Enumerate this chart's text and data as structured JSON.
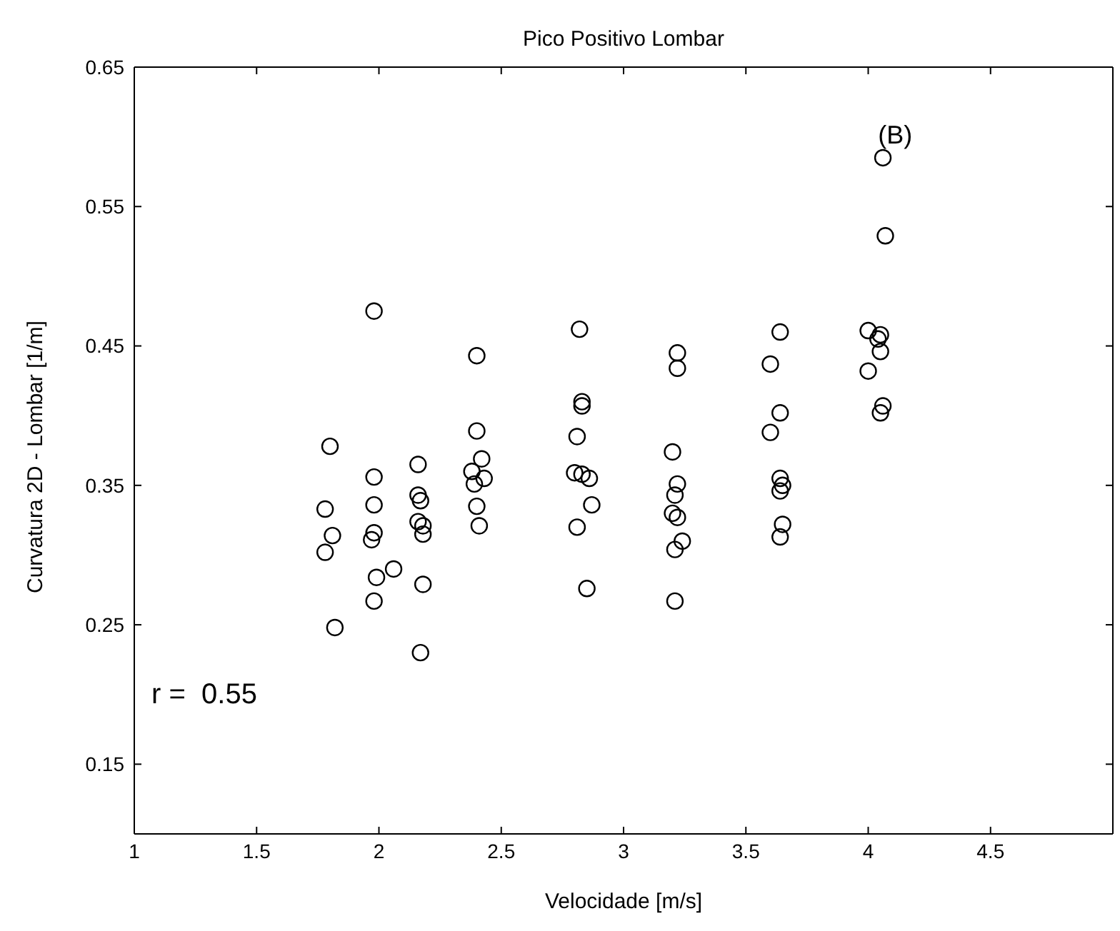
{
  "chart_data": {
    "type": "scatter",
    "title": "Pico Positivo Lombar",
    "xlabel": "Velocidade [m/s]",
    "ylabel": "Curvatura 2D - Lombar [1/m]",
    "annotations": [
      "(B)",
      "r =  0.55"
    ],
    "xlim": [
      1,
      5
    ],
    "xticks": [
      1,
      1.5,
      2,
      2.5,
      3,
      3.5,
      4,
      4.5
    ],
    "ylim": [
      0.1,
      0.65
    ],
    "yticks": [
      0.15,
      0.25,
      0.35,
      0.45,
      0.55,
      0.65
    ],
    "legend": false,
    "marker": "circle",
    "series": [
      {
        "color": "#000000",
        "x": [
          1.98,
          1.8,
          1.78,
          1.81,
          1.78,
          1.82,
          1.98,
          1.98,
          1.98,
          1.97,
          1.99,
          2.06,
          1.98,
          2.16,
          2.16,
          2.17,
          2.16,
          2.18,
          2.18,
          2.18,
          2.17,
          2.4,
          2.4,
          2.42,
          2.38,
          2.43,
          2.39,
          2.4,
          2.41,
          2.82,
          2.83,
          2.83,
          2.81,
          2.8,
          2.83,
          2.86,
          2.87,
          2.81,
          2.85,
          3.22,
          3.22,
          3.2,
          3.22,
          3.21,
          3.2,
          3.22,
          3.24,
          3.21,
          3.21,
          3.64,
          3.6,
          3.64,
          3.6,
          3.64,
          3.65,
          3.64,
          3.65,
          3.64,
          4.0,
          4.05,
          4.04,
          4.05,
          4.0,
          4.06,
          4.05,
          4.07,
          4.06
        ],
        "values": [
          0.475,
          0.378,
          0.333,
          0.314,
          0.302,
          0.248,
          0.356,
          0.336,
          0.316,
          0.311,
          0.284,
          0.29,
          0.267,
          0.365,
          0.343,
          0.339,
          0.324,
          0.321,
          0.315,
          0.279,
          0.23,
          0.443,
          0.389,
          0.369,
          0.36,
          0.355,
          0.351,
          0.335,
          0.321,
          0.462,
          0.41,
          0.407,
          0.385,
          0.359,
          0.358,
          0.355,
          0.336,
          0.32,
          0.276,
          0.445,
          0.434,
          0.374,
          0.351,
          0.343,
          0.33,
          0.327,
          0.31,
          0.304,
          0.267,
          0.46,
          0.437,
          0.402,
          0.388,
          0.355,
          0.35,
          0.346,
          0.322,
          0.313,
          0.461,
          0.458,
          0.455,
          0.446,
          0.432,
          0.407,
          0.402,
          0.529,
          0.585
        ]
      }
    ]
  }
}
